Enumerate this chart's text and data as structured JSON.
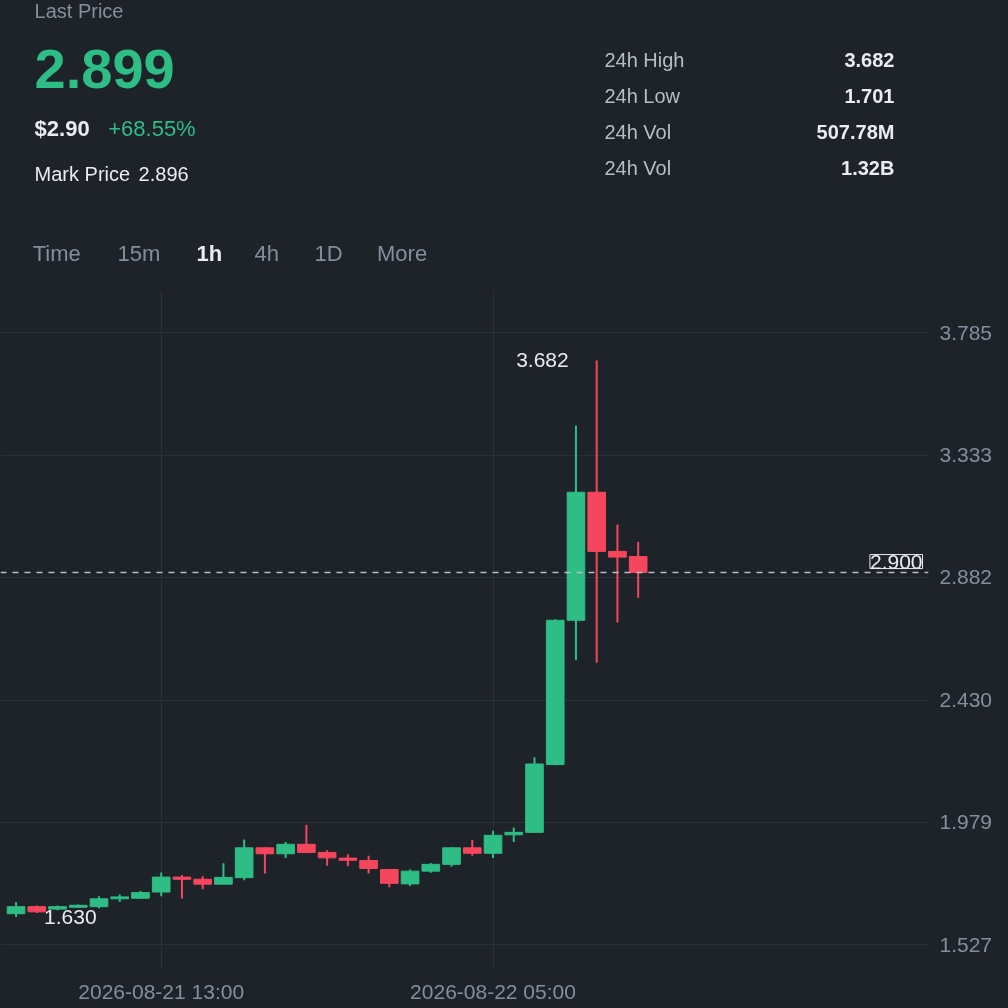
{
  "chart_data": {
    "type": "candlestick",
    "x": [
      "2026-08-21T06:00",
      "2026-08-21T07:00",
      "2026-08-21T08:00",
      "2026-08-21T09:00",
      "2026-08-21T10:00",
      "2026-08-21T11:00",
      "2026-08-21T12:00",
      "2026-08-21T13:00",
      "2026-08-21T14:00",
      "2026-08-21T15:00",
      "2026-08-21T16:00",
      "2026-08-21T17:00",
      "2026-08-21T18:00",
      "2026-08-21T19:00",
      "2026-08-21T20:00",
      "2026-08-21T21:00",
      "2026-08-21T22:00",
      "2026-08-21T23:00",
      "2026-08-22T00:00",
      "2026-08-22T01:00",
      "2026-08-22T02:00",
      "2026-08-22T03:00",
      "2026-08-22T04:00",
      "2026-08-22T05:00",
      "2026-08-22T06:00",
      "2026-08-22T07:00",
      "2026-08-22T08:00",
      "2026-08-22T09:00",
      "2026-08-22T10:00",
      "2026-08-22T11:00",
      "2026-08-22T12:00"
    ],
    "ohlc": [
      [
        1.642,
        1.685,
        1.63,
        1.668
      ],
      [
        1.668,
        1.672,
        1.645,
        1.649
      ],
      [
        1.659,
        1.672,
        1.655,
        1.668
      ],
      [
        1.666,
        1.676,
        1.663,
        1.673
      ],
      [
        1.668,
        1.706,
        1.662,
        1.697
      ],
      [
        1.697,
        1.713,
        1.685,
        1.704
      ],
      [
        1.699,
        1.726,
        1.697,
        1.72
      ],
      [
        1.722,
        1.794,
        1.706,
        1.777
      ],
      [
        1.777,
        1.785,
        1.698,
        1.769
      ],
      [
        1.769,
        1.78,
        1.732,
        1.751
      ],
      [
        1.751,
        1.828,
        1.751,
        1.776
      ],
      [
        1.775,
        1.916,
        1.765,
        1.885
      ],
      [
        1.885,
        1.887,
        1.79,
        1.863
      ],
      [
        1.863,
        1.906,
        1.847,
        1.898
      ],
      [
        1.898,
        1.97,
        1.865,
        1.868
      ],
      [
        1.868,
        1.876,
        1.819,
        1.848
      ],
      [
        1.847,
        1.861,
        1.817,
        1.839
      ],
      [
        1.838,
        1.856,
        1.79,
        1.809
      ],
      [
        1.805,
        1.805,
        1.74,
        1.754
      ],
      [
        1.752,
        1.805,
        1.744,
        1.799
      ],
      [
        1.799,
        1.829,
        1.793,
        1.824
      ],
      [
        1.824,
        1.887,
        1.815,
        1.885
      ],
      [
        1.885,
        1.914,
        1.856,
        1.865
      ],
      [
        1.865,
        1.948,
        1.847,
        1.931
      ],
      [
        1.933,
        1.96,
        1.906,
        1.942
      ],
      [
        1.942,
        2.219,
        1.94,
        2.194
      ],
      [
        2.192,
        2.728,
        2.189,
        2.724
      ],
      [
        2.724,
        3.442,
        2.577,
        3.196
      ],
      [
        3.196,
        3.682,
        2.567,
        2.978
      ],
      [
        2.978,
        3.077,
        2.716,
        2.957
      ],
      [
        2.959,
        3.013,
        2.807,
        2.9
      ]
    ],
    "colors": [
      "#2ebd85",
      "#f6465d",
      "#2ebd85",
      "#2ebd85",
      "#2ebd85",
      "#2ebd85",
      "#2ebd85",
      "#2ebd85",
      "#f6465d",
      "#f6465d",
      "#2ebd85",
      "#2ebd85",
      "#f6465d",
      "#2ebd85",
      "#f6465d",
      "#f6465d",
      "#f6465d",
      "#f6465d",
      "#f6465d",
      "#2ebd85",
      "#2ebd85",
      "#2ebd85",
      "#f6465d",
      "#2ebd85",
      "#2ebd85",
      "#2ebd85",
      "#2ebd85",
      "#2ebd85",
      "#f6465d",
      "#f6465d",
      "#f6465d"
    ],
    "xlim": [
      "2026-08-21T05:15",
      "2026-08-23T02:00"
    ],
    "xticks": [
      {
        "value": "2026-08-21T13:00",
        "label": "2026-08-21 13:00"
      },
      {
        "value": "2026-08-22T05:00",
        "label": "2026-08-22 05:00"
      }
    ],
    "ylim": [
      1.44,
      3.94
    ],
    "yticks": [
      3.785,
      3.333,
      2.882,
      {
        "value": 2.43,
        "label": "2.430"
      },
      1.979,
      1.527
    ],
    "grid": true,
    "ref_lines": [
      {
        "axis": "y",
        "value": 2.9,
        "label": "2.900",
        "line_style": "dashed",
        "color": "#b7bdc6"
      }
    ],
    "annotations": [
      "Last Price",
      "2.899",
      "$2.90",
      "+68.55%",
      "Mark Price",
      "2.896",
      "24h High",
      "3.682",
      "24h Low",
      "1.701",
      "24h Vol",
      "507.78M",
      "24h Vol",
      "1.32B",
      "Time",
      "15m",
      "1h",
      "4h",
      "1D",
      "More",
      {
        "text": "3.682",
        "x": "2026-08-22T10:00",
        "y": 3.682
      },
      {
        "text": "1.630",
        "x": "2026-08-21T06:00",
        "y": 1.63
      }
    ]
  }
}
